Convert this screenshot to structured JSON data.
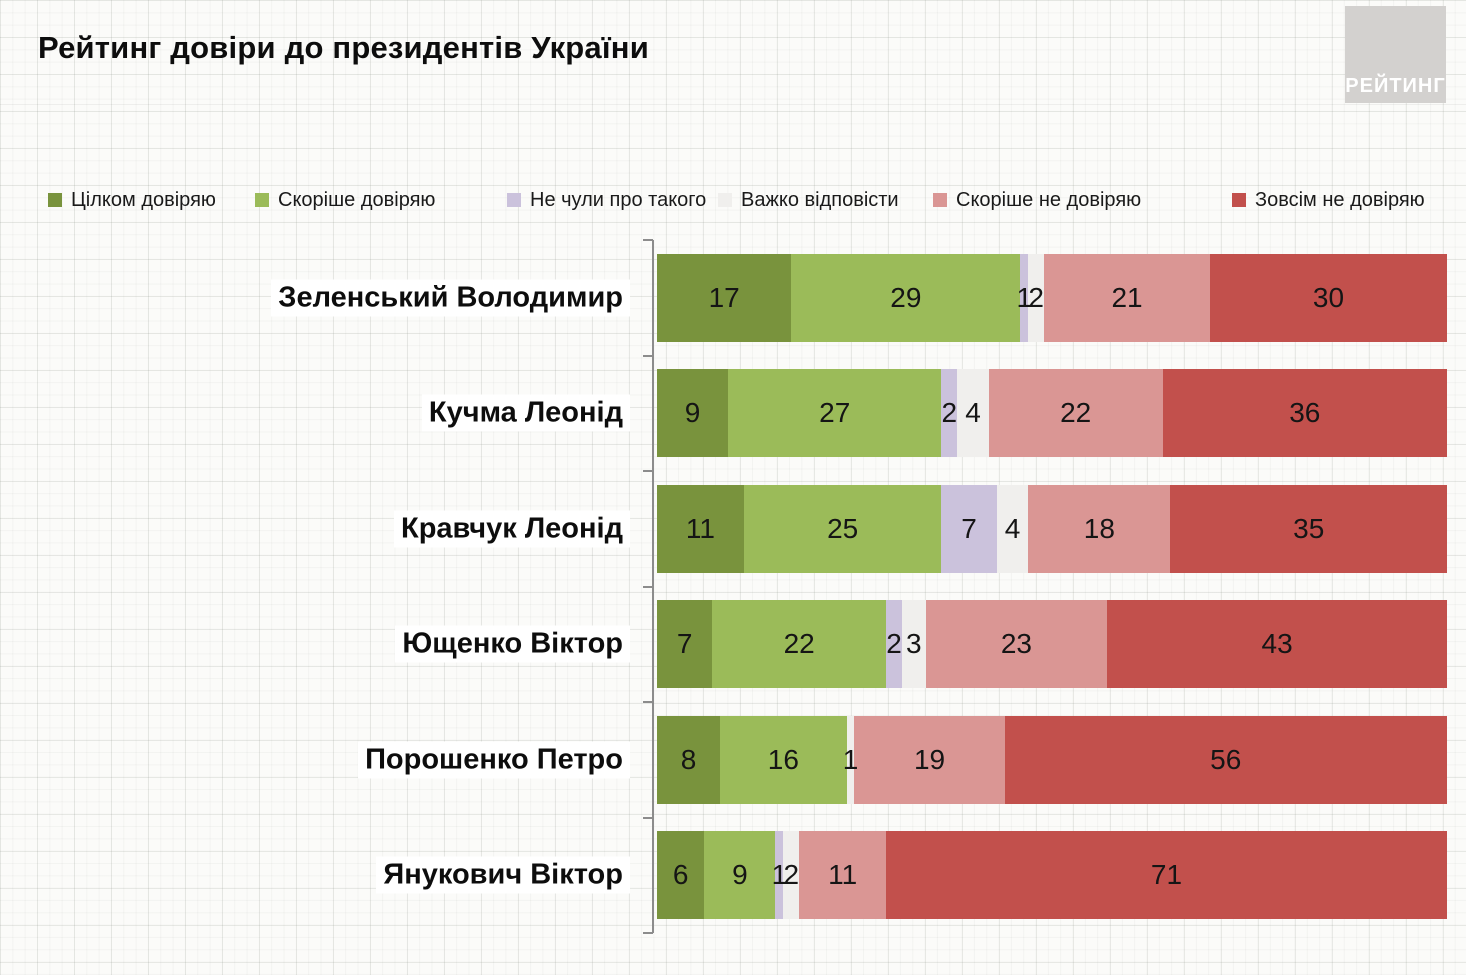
{
  "title": "Рейтинг довіри до президентів України",
  "logo": {
    "text": "РЕЙТИНГ"
  },
  "chart_data": {
    "type": "bar",
    "stacked": true,
    "orientation": "horizontal",
    "title": "Рейтинг довіри до президентів України",
    "unit": "%",
    "xlim": [
      0,
      100
    ],
    "grid": false,
    "legend_position": "top",
    "value_labels": "inside",
    "categories": [
      "Зеленський Володимир",
      "Кучма Леонід",
      "Кравчук Леонід",
      "Ющенко Віктор",
      "Порошенко Петро",
      "Янукович Віктор"
    ],
    "series": [
      {
        "name": "Цілком довіряю",
        "color": "#79933D",
        "values": [
          17,
          9,
          11,
          7,
          8,
          6
        ]
      },
      {
        "name": "Скоріше довіряю",
        "color": "#9BBB59",
        "values": [
          29,
          27,
          25,
          22,
          16,
          9
        ]
      },
      {
        "name": "Не чули про такого",
        "color": "#CBC2DC",
        "values": [
          1,
          2,
          7,
          2,
          0,
          1
        ]
      },
      {
        "name": "Важко відповісти",
        "color": "#F0EFED",
        "values": [
          2,
          4,
          4,
          3,
          1,
          2
        ]
      },
      {
        "name": "Скоріше не довіряю",
        "color": "#DA9694",
        "values": [
          21,
          22,
          18,
          23,
          19,
          11
        ]
      },
      {
        "name": "Зовсім не довіряю",
        "color": "#C2504C",
        "values": [
          30,
          36,
          35,
          43,
          56,
          71
        ]
      }
    ]
  }
}
